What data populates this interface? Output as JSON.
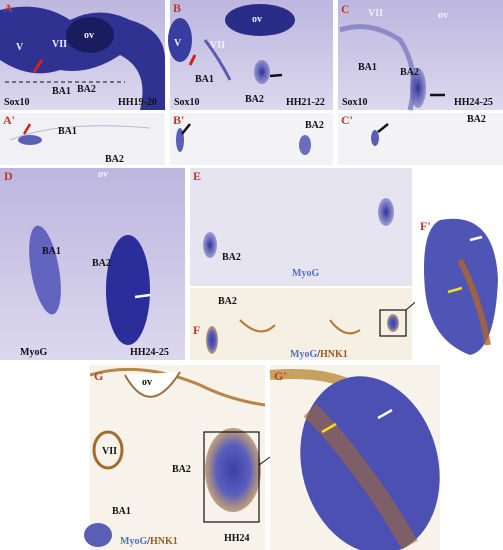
{
  "panels": [
    {
      "letter": "A",
      "labels": [
        "V",
        "VII",
        "ov",
        "BA1",
        "BA2"
      ],
      "stain": [
        "Sox10"
      ],
      "stage": "HH19-20"
    },
    {
      "letter": "B",
      "labels": [
        "V",
        "VII",
        "ov",
        "BA1",
        "BA2"
      ],
      "stain": [
        "Sox10"
      ],
      "stage": "HH21-22"
    },
    {
      "letter": "C",
      "labels": [
        "VII",
        "ov",
        "BA1",
        "BA2"
      ],
      "stain": [
        "Sox10"
      ],
      "stage": "HH24-25"
    },
    {
      "letter": "A'",
      "labels": [
        "BA1",
        "BA2"
      ]
    },
    {
      "letter": "B'",
      "labels": [
        "BA2"
      ]
    },
    {
      "letter": "C'",
      "labels": [
        "BA2"
      ]
    },
    {
      "letter": "D",
      "labels": [
        "ov",
        "BA1",
        "BA2"
      ],
      "stain": [
        "MyoG"
      ],
      "stage": "HH24-25"
    },
    {
      "letter": "E",
      "labels": [
        "BA2"
      ],
      "stain": [
        "MyoG"
      ]
    },
    {
      "letter": "F",
      "labels": [
        "BA2"
      ],
      "stain": [
        "MyoG",
        "/",
        "HNK1"
      ]
    },
    {
      "letter": "F'"
    },
    {
      "letter": "G",
      "labels": [
        "ov",
        "VII",
        "BA2",
        "BA1"
      ],
      "stain": [
        "MyoG",
        "/",
        "HNK1"
      ],
      "stage": "HH24"
    },
    {
      "letter": "G'"
    }
  ]
}
